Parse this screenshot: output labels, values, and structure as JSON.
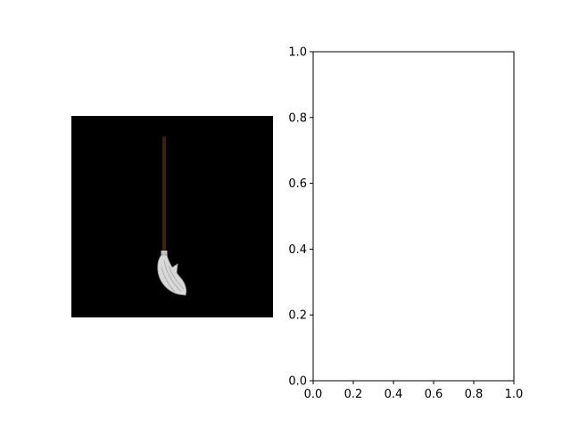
{
  "image_panel": {
    "background": "#000000",
    "content": "mop-icon",
    "mop_handle_color": "#3b1f10",
    "mop_head_color": "#d8d8d8"
  },
  "chart_data": {
    "type": "scatter",
    "title": "",
    "xlabel": "",
    "ylabel": "",
    "xlim": [
      0,
      1
    ],
    "ylim": [
      0,
      1
    ],
    "x_ticks": [
      "0.0",
      "0.2",
      "0.4",
      "0.6",
      "0.8",
      "1.0"
    ],
    "y_ticks": [
      "0.0",
      "0.2",
      "0.4",
      "0.6",
      "0.8",
      "1.0"
    ],
    "series": [],
    "grid": false,
    "legend": "none"
  }
}
